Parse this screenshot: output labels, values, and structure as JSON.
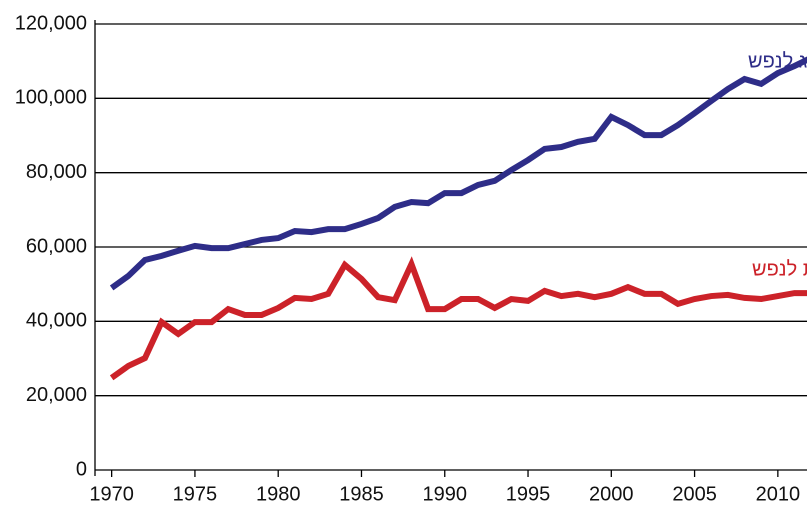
{
  "chart_data": {
    "type": "line",
    "x": [
      1970,
      1971,
      1972,
      1973,
      1974,
      1975,
      1976,
      1977,
      1978,
      1979,
      1980,
      1981,
      1982,
      1983,
      1984,
      1985,
      1986,
      1987,
      1988,
      1989,
      1990,
      1991,
      1992,
      1993,
      1994,
      1995,
      1996,
      1997,
      1998,
      1999,
      2000,
      2001,
      2002,
      2003,
      2004,
      2005,
      2006,
      2007,
      2008,
      2009,
      2010,
      2011,
      2012
    ],
    "series": [
      {
        "name": "תמ\"ג לנפש",
        "color": "#2e2d88",
        "values": [
          49000,
          52200,
          56500,
          57600,
          59000,
          60300,
          59700,
          59700,
          60800,
          61900,
          62400,
          64300,
          64000,
          64800,
          64800,
          66200,
          67800,
          70800,
          72100,
          71800,
          74500,
          74500,
          76700,
          77800,
          80700,
          83400,
          86400,
          86900,
          88300,
          89100,
          95000,
          92800,
          90100,
          90100,
          92800,
          96000,
          99300,
          102500,
          105200,
          103900,
          106800,
          108700,
          110900
        ]
      },
      {
        "name": "הוצאה ממשלתית לנפש",
        "color": "#cc2229",
        "values": [
          24800,
          28000,
          30100,
          39800,
          36600,
          39800,
          39800,
          43300,
          41700,
          41700,
          43600,
          46300,
          46000,
          47400,
          55200,
          51400,
          46500,
          45700,
          55400,
          43300,
          43300,
          46000,
          46000,
          43600,
          46000,
          45500,
          48200,
          46800,
          47400,
          46500,
          47400,
          49200,
          47400,
          47400,
          44700,
          46000,
          46800,
          47100,
          46300,
          46000,
          46800,
          47600,
          47600
        ]
      }
    ],
    "xlim": [
      1969,
      2011.75
    ],
    "xticks": [
      1970,
      1975,
      1980,
      1985,
      1990,
      1995,
      2000,
      2005,
      2010
    ],
    "ylim": [
      0,
      120000
    ],
    "yticks": [
      0,
      {
        "value": 20000,
        "label": "20,000"
      },
      {
        "value": 40000,
        "label": "40,000"
      },
      {
        "value": 60000,
        "label": "60,000"
      },
      {
        "value": 80000,
        "label": "80,000"
      },
      {
        "value": 100000,
        "label": "100,000"
      },
      {
        "value": 120000,
        "label": "120,000"
      }
    ],
    "grid": true
  }
}
